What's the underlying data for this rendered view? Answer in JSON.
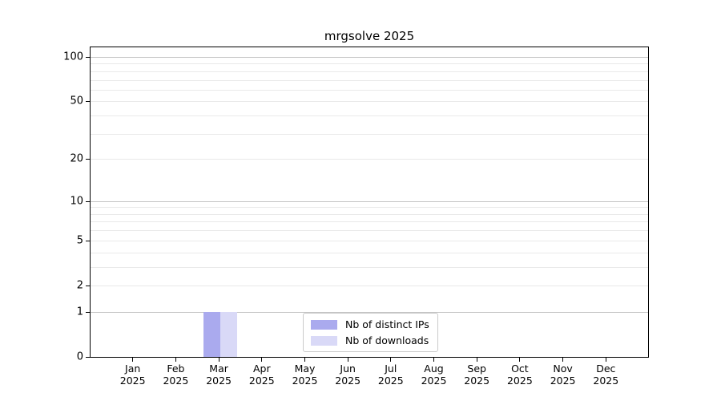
{
  "chart_data": {
    "type": "bar",
    "title": "mrgsolve 2025",
    "categories": [
      "Jan 2025",
      "Feb 2025",
      "Mar 2025",
      "Apr 2025",
      "May 2025",
      "Jun 2025",
      "Jul 2025",
      "Aug 2025",
      "Sep 2025",
      "Oct 2025",
      "Nov 2025",
      "Dec 2025"
    ],
    "x_months": [
      "Jan",
      "Feb",
      "Mar",
      "Apr",
      "May",
      "Jun",
      "Jul",
      "Aug",
      "Sep",
      "Oct",
      "Nov",
      "Dec"
    ],
    "x_year": "2025",
    "series": [
      {
        "name": "Nb of distinct IPs",
        "color": "#aaaaee",
        "values": [
          0,
          0,
          1,
          0,
          0,
          0,
          0,
          0,
          0,
          0,
          0,
          0
        ]
      },
      {
        "name": "Nb of downloads",
        "color": "#d9d9f7",
        "values": [
          0,
          0,
          1,
          0,
          0,
          0,
          0,
          0,
          0,
          0,
          0,
          0
        ]
      }
    ],
    "yscale": "log1p",
    "ylim": [
      0,
      116
    ],
    "yticks": [
      0,
      1,
      2,
      5,
      10,
      20,
      50,
      100
    ],
    "minor_yticks": [
      3,
      4,
      6,
      7,
      8,
      9,
      30,
      40,
      60,
      70,
      80,
      90
    ],
    "emphasized_gridlines": [
      1,
      10,
      100
    ],
    "grid": true,
    "legend_position": "lower center",
    "colors": {
      "grid_major": "#c4c4c4",
      "grid_minor": "#e9e9e9",
      "spine": "#000000",
      "text": "#000000",
      "background": "#ffffff"
    }
  }
}
